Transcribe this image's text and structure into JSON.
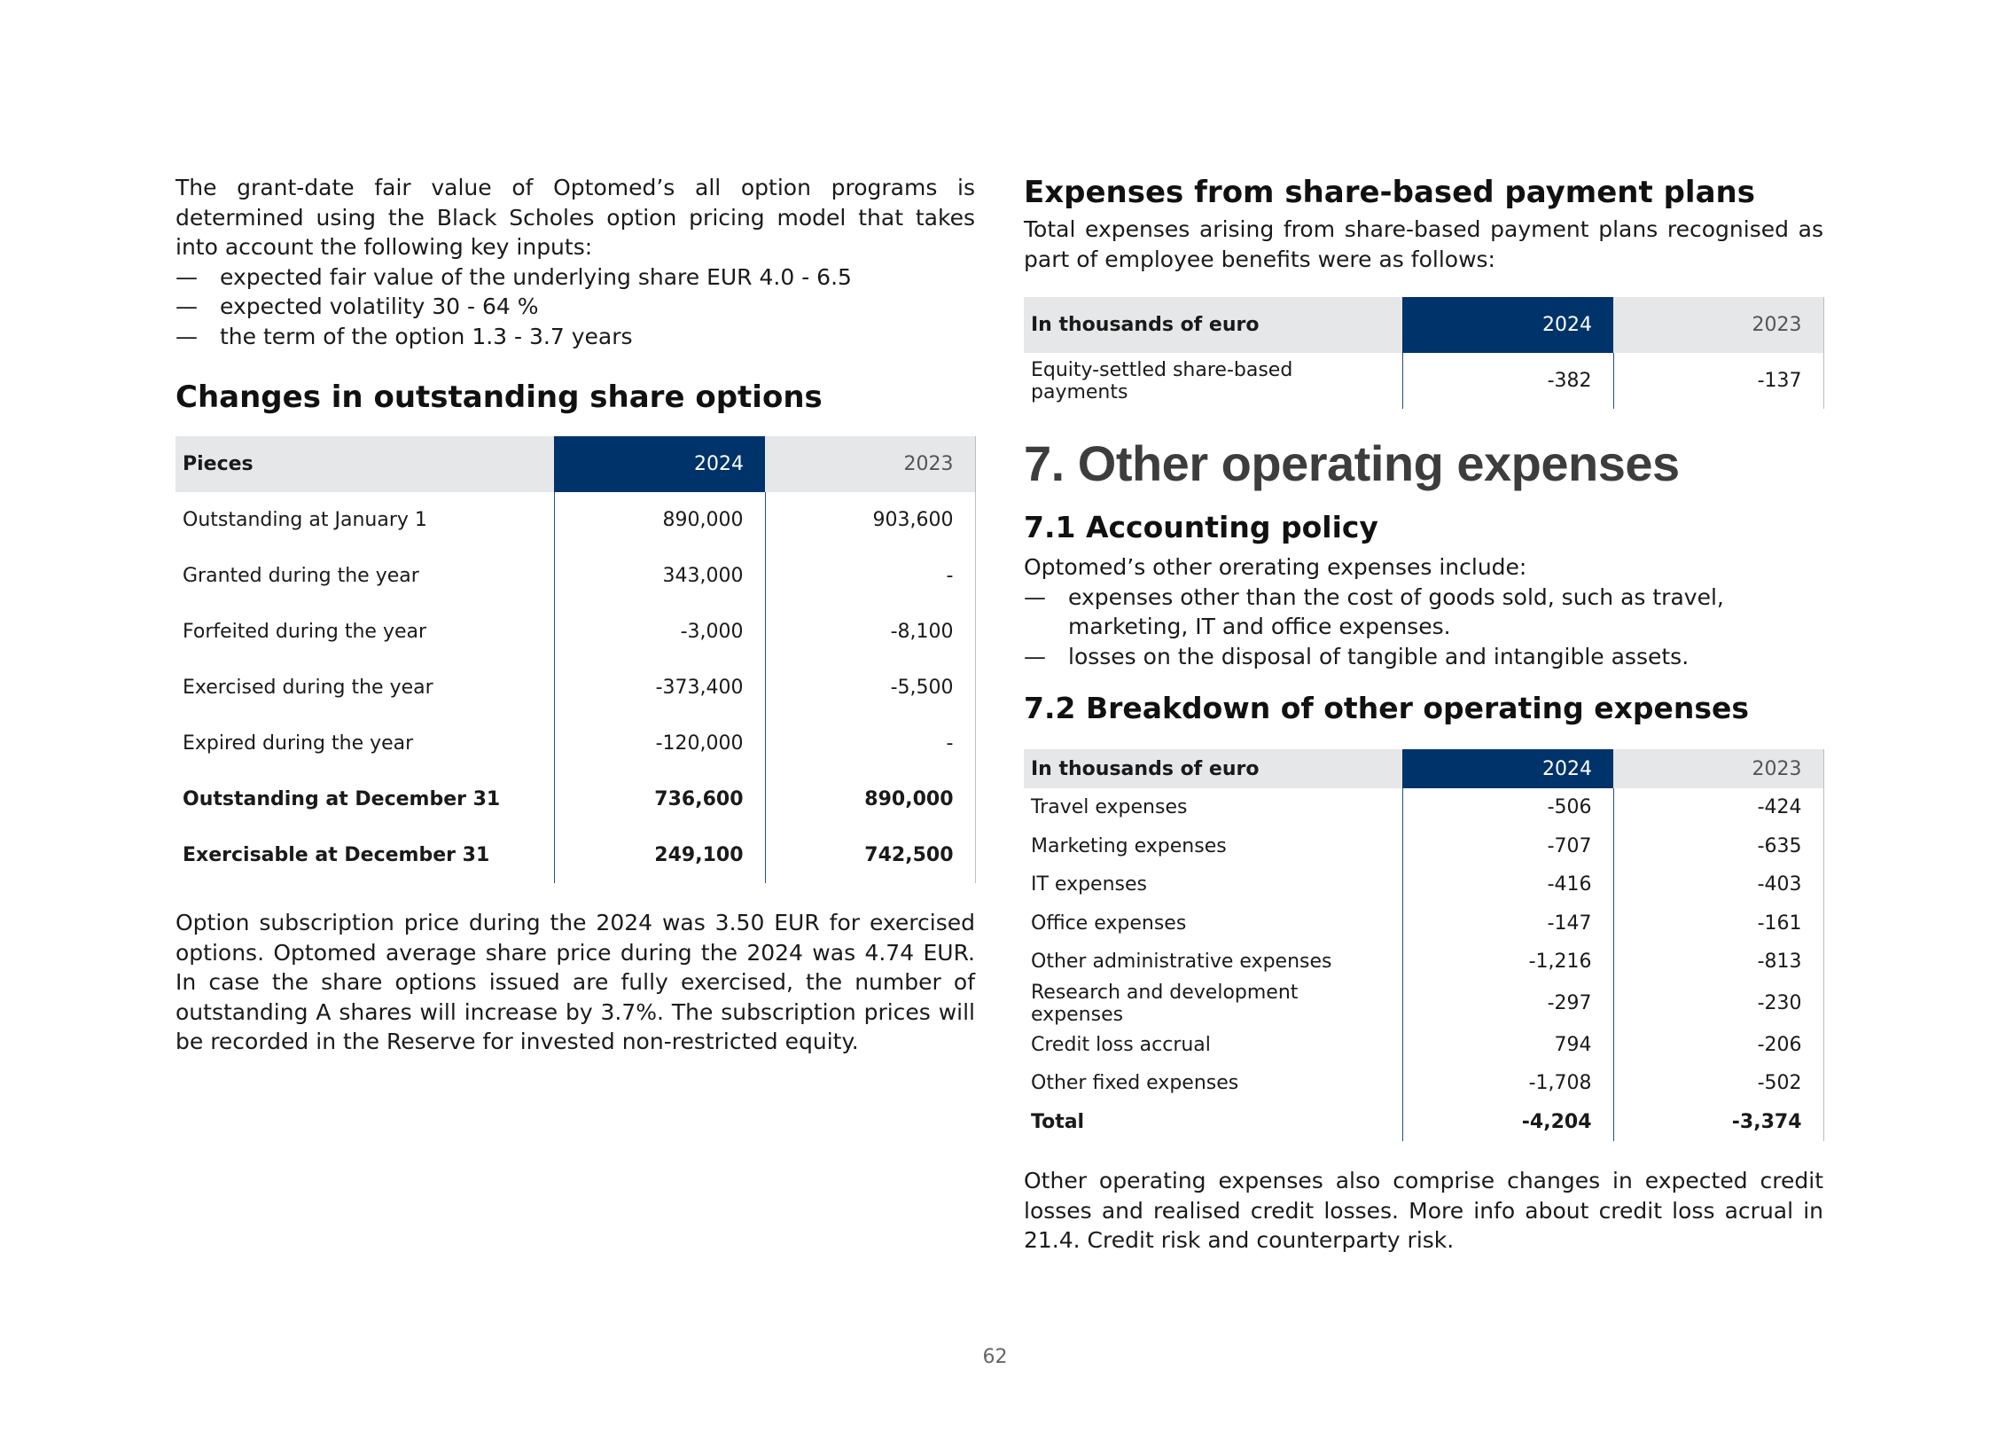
{
  "left": {
    "intro": "The grant-date fair value of Optomed’s all option programs is determined using the Black Scholes option pricing model that takes into account the following key inputs:",
    "inputs": [
      "expected fair value of  the underlying share EUR 4.0 - 6.5",
      "expected volatility 30 - 64 %",
      "the term of the option 1.3 - 3.7 years"
    ],
    "dash": "—",
    "options_heading": "Changes in outstanding share options",
    "options_table": {
      "headers": [
        "Pieces",
        "2024",
        "2023"
      ],
      "rows": [
        {
          "label": "Outstanding at January 1",
          "v2024": "890,000",
          "v2023": "903,600"
        },
        {
          "label": "Granted during the year",
          "v2024": "343,000",
          "v2023": "-"
        },
        {
          "label": "Forfeited during the year",
          "v2024": "-3,000",
          "v2023": "-8,100"
        },
        {
          "label": "Exercised during the year",
          "v2024": "-373,400",
          "v2023": "-5,500"
        },
        {
          "label": "Expired during the year",
          "v2024": "-120,000",
          "v2023": "-"
        },
        {
          "label": "Outstanding at December 31",
          "v2024": "736,600",
          "v2023": "890,000"
        },
        {
          "label": "Exercisable at December 31",
          "v2024": "249,100",
          "v2023": "742,500"
        }
      ]
    },
    "closing": "Option subscription price during the 2024 was 3.50 EUR for exercised options. Optomed average share price during the 2024 was 4.74 EUR. In case the share options issued are fully exercised, the number of outstanding A shares will increase by 3.7%. The subscription prices will be recorded in the Reserve for invested non-restricted equity."
  },
  "right": {
    "sbp_heading": "Expenses from share-based payment plans",
    "sbp_text": "Total expenses arising from share-based payment plans recognised as part of employee benefits were as follows:",
    "sbp_table": {
      "headers": [
        "In thousands of euro",
        "2024",
        "2023"
      ],
      "rows": [
        {
          "label": "Equity-settled share-based payments",
          "v2024": "-382",
          "v2023": "-137"
        }
      ]
    },
    "section_title": "7. Other operating expenses",
    "policy_heading": "7.1 Accounting policy",
    "policy_text": "Optomed’s other orerating expenses include:",
    "policy_items": [
      "expenses other than the cost of goods sold, such as travel, marketing, IT and office expenses.",
      "losses on the disposal of tangible and intangible assets."
    ],
    "breakdown_heading": "7.2 Breakdown of other operating expenses",
    "breakdown_table": {
      "headers": [
        "In thousands of euro",
        "2024",
        "2023"
      ],
      "rows": [
        {
          "label": "Travel expenses",
          "v2024": "-506",
          "v2023": "-424"
        },
        {
          "label": "Marketing expenses",
          "v2024": "-707",
          "v2023": "-635"
        },
        {
          "label": "IT expenses",
          "v2024": "-416",
          "v2023": "-403"
        },
        {
          "label": "Office expenses",
          "v2024": "-147",
          "v2023": "-161"
        },
        {
          "label": "Other administrative expenses",
          "v2024": "-1,216",
          "v2023": "-813"
        },
        {
          "label": "Research and development expenses",
          "v2024": "-297",
          "v2023": "-230"
        },
        {
          "label": "Credit loss accrual",
          "v2024": "794",
          "v2023": "-206"
        },
        {
          "label": "Other fixed expenses",
          "v2024": "-1,708",
          "v2023": "-502"
        },
        {
          "label": "Total",
          "v2024": "-4,204",
          "v2023": "-3,374"
        }
      ]
    },
    "closing": "Other operating expenses also comprise changes in expected credit losses and realised credit losses. More info about credit loss acrual  in 21.4. Credit risk and counterparty risk."
  },
  "page_number": "62"
}
